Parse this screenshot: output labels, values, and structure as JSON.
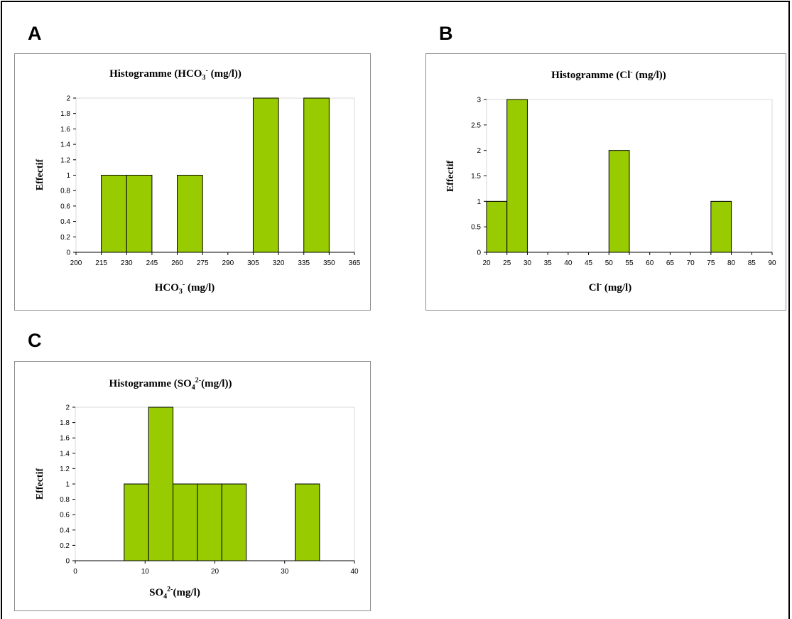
{
  "panels": [
    {
      "letter": "A"
    },
    {
      "letter": "B"
    },
    {
      "letter": "C"
    }
  ],
  "chart_data": [
    {
      "type": "bar",
      "panel": "A",
      "title_parts": [
        {
          "t": "Histogramme   (HCO"
        },
        {
          "t": "3",
          "sub": true
        },
        {
          "t": "-",
          "sup": true
        },
        {
          "t": "  (mg/l))"
        }
      ],
      "xlabel_parts": [
        {
          "t": "HCO"
        },
        {
          "t": "3",
          "sub": true
        },
        {
          "t": "-",
          "sup": true
        },
        {
          "t": "  (mg/l)"
        }
      ],
      "ylabel": "Effectif",
      "xticks": [
        "200",
        "215",
        "230",
        "245",
        "260",
        "275",
        "290",
        "305",
        "320",
        "335",
        "350",
        "365"
      ],
      "xlim": [
        200,
        365
      ],
      "yticks": [
        "0",
        "0.2",
        "0.4",
        "0.6",
        "0.8",
        "1",
        "1.2",
        "1.4",
        "1.6",
        "1.8",
        "2"
      ],
      "ylim": [
        0,
        2
      ],
      "bins": [
        {
          "from": 200,
          "to": 215,
          "value": 0
        },
        {
          "from": 215,
          "to": 230,
          "value": 1
        },
        {
          "from": 230,
          "to": 245,
          "value": 1
        },
        {
          "from": 245,
          "to": 260,
          "value": 0
        },
        {
          "from": 260,
          "to": 275,
          "value": 1
        },
        {
          "from": 275,
          "to": 290,
          "value": 0
        },
        {
          "from": 290,
          "to": 305,
          "value": 0
        },
        {
          "from": 305,
          "to": 320,
          "value": 2
        },
        {
          "from": 320,
          "to": 335,
          "value": 0
        },
        {
          "from": 335,
          "to": 350,
          "value": 2
        }
      ],
      "bar_color": "#99cc00"
    },
    {
      "type": "bar",
      "panel": "B",
      "title_parts": [
        {
          "t": "Histogramme   (Cl"
        },
        {
          "t": "-",
          "sup": true
        },
        {
          "t": " (mg/l))"
        }
      ],
      "xlabel_parts": [
        {
          "t": "Cl"
        },
        {
          "t": "-",
          "sup": true
        },
        {
          "t": " (mg/l)"
        }
      ],
      "ylabel": "Effectif",
      "xticks": [
        "20",
        "25",
        "30",
        "35",
        "40",
        "45",
        "50",
        "55",
        "60",
        "65",
        "70",
        "75",
        "80",
        "85",
        "90"
      ],
      "xlim": [
        20,
        90
      ],
      "yticks": [
        "0",
        "0.5",
        "1",
        "1.5",
        "2",
        "2.5",
        "3"
      ],
      "ylim": [
        0,
        3
      ],
      "bins": [
        {
          "from": 20,
          "to": 25,
          "value": 1
        },
        {
          "from": 25,
          "to": 30,
          "value": 3
        },
        {
          "from": 30,
          "to": 35,
          "value": 0
        },
        {
          "from": 35,
          "to": 40,
          "value": 0
        },
        {
          "from": 40,
          "to": 45,
          "value": 0
        },
        {
          "from": 45,
          "to": 50,
          "value": 0
        },
        {
          "from": 50,
          "to": 55,
          "value": 2
        },
        {
          "from": 55,
          "to": 60,
          "value": 0
        },
        {
          "from": 60,
          "to": 65,
          "value": 0
        },
        {
          "from": 65,
          "to": 70,
          "value": 0
        },
        {
          "from": 70,
          "to": 75,
          "value": 0
        },
        {
          "from": 75,
          "to": 80,
          "value": 1
        }
      ],
      "bar_color": "#99cc00"
    },
    {
      "type": "bar",
      "panel": "C",
      "title_parts": [
        {
          "t": "Histogramme   (SO"
        },
        {
          "t": "4",
          "sub": true
        },
        {
          "t": "2-",
          "sup": true
        },
        {
          "t": "(mg/l))"
        }
      ],
      "xlabel_parts": [
        {
          "t": "SO"
        },
        {
          "t": "4",
          "sub": true
        },
        {
          "t": "2-",
          "sup": true
        },
        {
          "t": "(mg/l)"
        }
      ],
      "ylabel": "Effectif",
      "xticks": [
        "0",
        "10",
        "20",
        "30",
        "40"
      ],
      "xlim": [
        0,
        40
      ],
      "yticks": [
        "0",
        "0.2",
        "0.4",
        "0.6",
        "0.8",
        "1",
        "1.2",
        "1.4",
        "1.6",
        "1.8",
        "2"
      ],
      "ylim": [
        0,
        2
      ],
      "bins": [
        {
          "from": 0,
          "to": 3.5,
          "value": 0
        },
        {
          "from": 3.5,
          "to": 7,
          "value": 0
        },
        {
          "from": 7,
          "to": 10.5,
          "value": 1
        },
        {
          "from": 10.5,
          "to": 14,
          "value": 2
        },
        {
          "from": 14,
          "to": 17.5,
          "value": 1
        },
        {
          "from": 17.5,
          "to": 21,
          "value": 1
        },
        {
          "from": 21,
          "to": 24.5,
          "value": 1
        },
        {
          "from": 24.5,
          "to": 28,
          "value": 0
        },
        {
          "from": 28,
          "to": 31.5,
          "value": 0
        },
        {
          "from": 31.5,
          "to": 35,
          "value": 1
        }
      ],
      "bar_color": "#99cc00"
    }
  ]
}
